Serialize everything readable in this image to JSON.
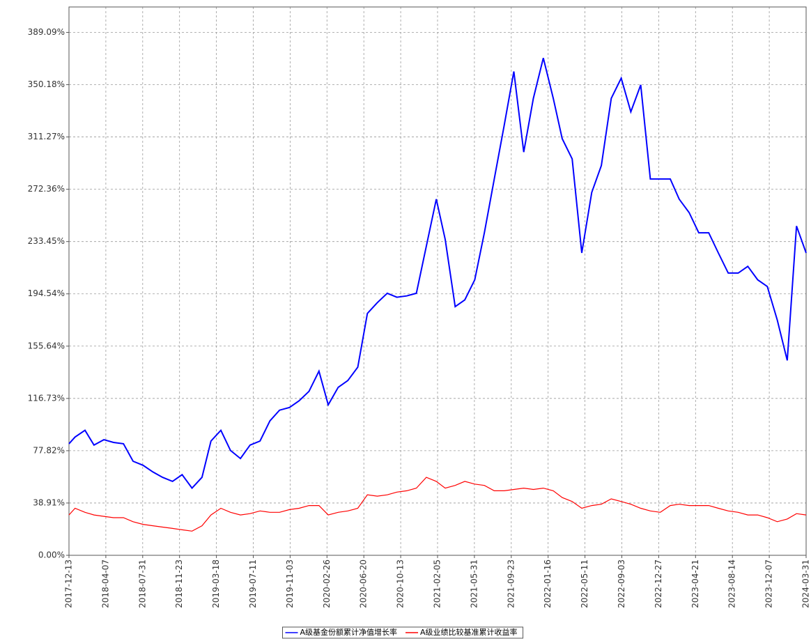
{
  "chart_data": {
    "type": "line",
    "x": [
      "2017-12-13",
      "2018-01-01",
      "2018-02-01",
      "2018-03-01",
      "2018-04-01",
      "2018-05-01",
      "2018-06-01",
      "2018-07-01",
      "2018-08-01",
      "2018-09-01",
      "2018-10-01",
      "2018-11-01",
      "2018-12-01",
      "2019-01-01",
      "2019-02-01",
      "2019-03-01",
      "2019-04-01",
      "2019-05-01",
      "2019-06-01",
      "2019-07-01",
      "2019-08-01",
      "2019-09-01",
      "2019-10-01",
      "2019-11-01",
      "2019-12-01",
      "2020-01-01",
      "2020-02-01",
      "2020-03-01",
      "2020-04-01",
      "2020-05-01",
      "2020-06-01",
      "2020-07-01",
      "2020-08-01",
      "2020-09-01",
      "2020-10-01",
      "2020-11-01",
      "2020-12-01",
      "2021-01-01",
      "2021-02-01",
      "2021-03-01",
      "2021-04-01",
      "2021-05-01",
      "2021-06-01",
      "2021-07-01",
      "2021-08-01",
      "2021-09-01",
      "2021-10-01",
      "2021-11-01",
      "2021-12-01",
      "2022-01-01",
      "2022-02-01",
      "2022-03-01",
      "2022-04-01",
      "2022-05-01",
      "2022-06-01",
      "2022-07-01",
      "2022-08-01",
      "2022-09-01",
      "2022-10-01",
      "2022-11-01",
      "2022-12-01",
      "2023-01-01",
      "2023-02-01",
      "2023-03-01",
      "2023-04-01",
      "2023-05-01",
      "2023-06-01",
      "2023-07-01",
      "2023-08-01",
      "2023-09-01",
      "2023-10-01",
      "2023-11-01",
      "2023-12-01",
      "2024-01-01",
      "2024-02-01",
      "2024-03-01",
      "2024-03-31"
    ],
    "series": [
      {
        "name": "A级基金份额累计净值增长率",
        "color": "#0000ff",
        "values": [
          83,
          88,
          93,
          82,
          86,
          84,
          83,
          70,
          67,
          62,
          58,
          55,
          60,
          50,
          58,
          85,
          93,
          78,
          72,
          82,
          85,
          100,
          108,
          110,
          115,
          122,
          137,
          112,
          125,
          130,
          140,
          180,
          188,
          195,
          192,
          193,
          195,
          230,
          265,
          235,
          185,
          190,
          205,
          240,
          280,
          320,
          360,
          300,
          340,
          370,
          340,
          310,
          295,
          225,
          270,
          290,
          340,
          355,
          330,
          350,
          280,
          280,
          280,
          265,
          255,
          240,
          240,
          225,
          210,
          210,
          215,
          205,
          200,
          175,
          145,
          245,
          225
        ]
      },
      {
        "name": "A级业绩比较基准累计收益率",
        "color": "#ff0000",
        "values": [
          30,
          35,
          32,
          30,
          29,
          28,
          28,
          25,
          23,
          22,
          21,
          20,
          19,
          18,
          22,
          30,
          35,
          32,
          30,
          31,
          33,
          32,
          32,
          34,
          35,
          37,
          37,
          30,
          32,
          33,
          35,
          45,
          44,
          45,
          47,
          48,
          50,
          58,
          55,
          50,
          52,
          55,
          53,
          52,
          48,
          48,
          49,
          50,
          49,
          50,
          48,
          43,
          40,
          35,
          37,
          38,
          42,
          40,
          38,
          35,
          33,
          32,
          37,
          38,
          37,
          37,
          37,
          35,
          33,
          32,
          30,
          30,
          28,
          25,
          27,
          31,
          30
        ]
      }
    ],
    "xlim": [
      "2017-12-13",
      "2024-03-31"
    ],
    "xticks": [
      "2017-12-13",
      "2018-04-07",
      "2018-07-31",
      "2018-11-23",
      "2019-03-18",
      "2019-07-11",
      "2019-11-03",
      "2020-02-26",
      "2020-06-20",
      "2020-10-13",
      "2021-02-05",
      "2021-05-31",
      "2021-09-23",
      "2022-01-16",
      "2022-05-11",
      "2022-09-03",
      "2022-12-27",
      "2023-04-21",
      "2023-08-14",
      "2023-12-07",
      "2024-03-31"
    ],
    "ylim": [
      0,
      408
    ],
    "yticks": [
      {
        "value": 0,
        "label": "0.00%"
      },
      {
        "value": 38.91,
        "label": "38.91%"
      },
      {
        "value": 77.82,
        "label": "77.82%"
      },
      {
        "value": 116.73,
        "label": "116.73%"
      },
      {
        "value": 155.64,
        "label": "155.64%"
      },
      {
        "value": 194.54,
        "label": "194.54%"
      },
      {
        "value": 233.45,
        "label": "233.45%"
      },
      {
        "value": 272.36,
        "label": "272.36%"
      },
      {
        "value": 311.27,
        "label": "311.27%"
      },
      {
        "value": 350.18,
        "label": "350.18%"
      },
      {
        "value": 389.09,
        "label": "389.09%"
      }
    ],
    "grid": true,
    "legend": "bottom"
  }
}
